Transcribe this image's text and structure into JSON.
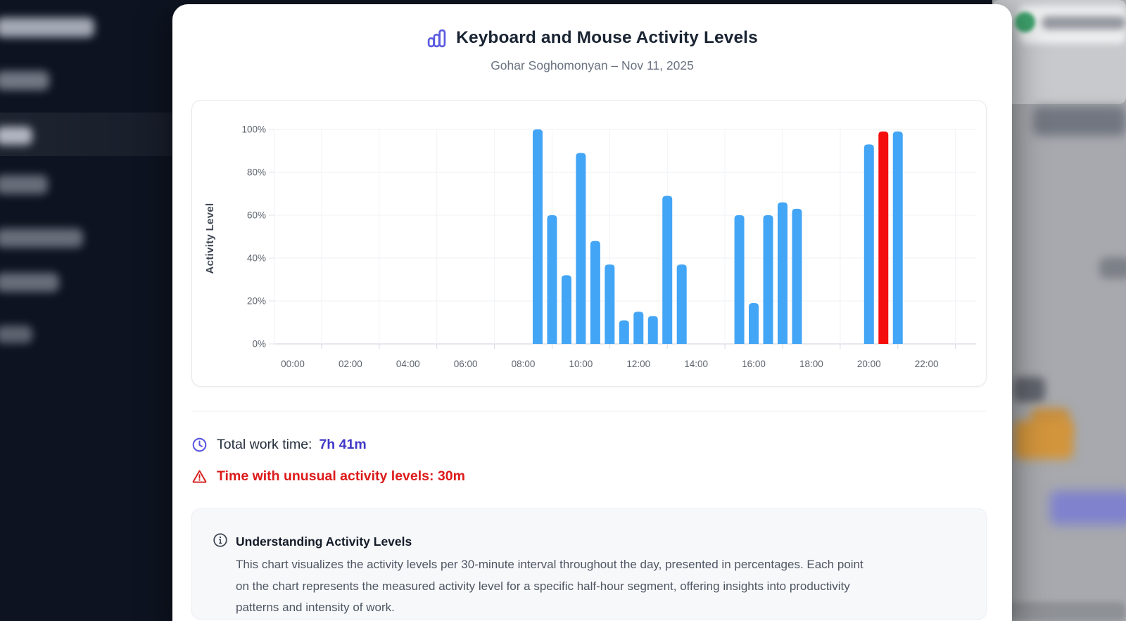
{
  "modal": {
    "title": "Keyboard and Mouse Activity Levels",
    "subtitle": "Gohar Soghomonyan – Nov 11, 2025",
    "stats": {
      "work_time_label": "Total work time:",
      "work_time_value": "7h 41m",
      "unusual_text": "Time with unusual activity levels: 30m"
    },
    "info": {
      "title": "Understanding Activity Levels",
      "body_lines": [
        "This chart visualizes the activity levels per 30-minute interval throughout the day, presented in percentages. Each point",
        "on the chart represents the measured activity level for a specific half-hour segment, offering insights into productivity",
        "patterns and intensity of work."
      ]
    }
  },
  "colors": {
    "bar": "#43a5f5",
    "unusual_bar": "#f40e0e",
    "accent_indigo": "#5b5be0",
    "value_indigo": "#4038c8",
    "alert_red": "#dc1a1a",
    "sidebar_bg": "#0d1320"
  },
  "chart_data": {
    "type": "bar",
    "title": "Keyboard and Mouse Activity Levels",
    "xlabel": "",
    "ylabel": "Activity Level",
    "ylim": [
      0,
      100
    ],
    "yticks": [
      "0%",
      "20%",
      "40%",
      "60%",
      "80%",
      "100%"
    ],
    "xticks": [
      "00:00",
      "02:00",
      "04:00",
      "06:00",
      "08:00",
      "10:00",
      "12:00",
      "14:00",
      "16:00",
      "18:00",
      "20:00",
      "22:00"
    ],
    "interval_minutes": 30,
    "grid": true,
    "legend": "none",
    "bar_color": "#43a5f5",
    "unusual_color": "#f40e0e",
    "points": [
      {
        "time": "08:30",
        "value": 100
      },
      {
        "time": "09:00",
        "value": 60
      },
      {
        "time": "09:30",
        "value": 32
      },
      {
        "time": "10:00",
        "value": 89
      },
      {
        "time": "10:30",
        "value": 48
      },
      {
        "time": "11:00",
        "value": 37
      },
      {
        "time": "11:30",
        "value": 11
      },
      {
        "time": "12:00",
        "value": 15
      },
      {
        "time": "12:30",
        "value": 13
      },
      {
        "time": "13:00",
        "value": 69
      },
      {
        "time": "13:30",
        "value": 37
      },
      {
        "time": "15:30",
        "value": 60
      },
      {
        "time": "16:00",
        "value": 19
      },
      {
        "time": "16:30",
        "value": 60
      },
      {
        "time": "17:00",
        "value": 66
      },
      {
        "time": "17:30",
        "value": 63
      },
      {
        "time": "20:00",
        "value": 93
      },
      {
        "time": "20:30",
        "value": 99,
        "unusual": true
      },
      {
        "time": "21:00",
        "value": 99
      }
    ]
  }
}
